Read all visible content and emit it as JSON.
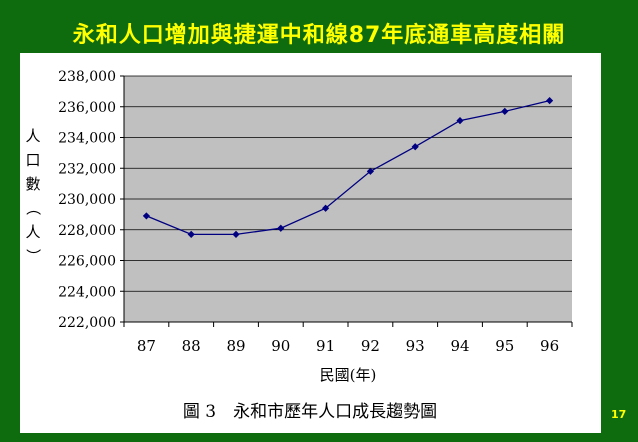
{
  "slide": {
    "title": "永和人口增加與捷運中和線87年底通車高度相關",
    "page_number": "17"
  },
  "chart_data": {
    "type": "line",
    "title": "",
    "caption": "圖 3　永和市歷年人口成長趨勢圖",
    "xlabel": "民國(年)",
    "ylabel": "人口數（人）",
    "categories": [
      "87",
      "88",
      "89",
      "90",
      "91",
      "92",
      "93",
      "94",
      "95",
      "96"
    ],
    "values": [
      228900,
      227700,
      227700,
      228100,
      229400,
      231800,
      233400,
      235100,
      235700,
      236400
    ],
    "ylim": [
      222000,
      238000
    ],
    "yticks": [
      "222,000",
      "224,000",
      "226,000",
      "228,000",
      "230,000",
      "232,000",
      "234,000",
      "236,000",
      "238,000"
    ],
    "grid": true,
    "plot_background": "#c0c0c0",
    "line_color": "#000080",
    "marker_color": "#000080"
  }
}
